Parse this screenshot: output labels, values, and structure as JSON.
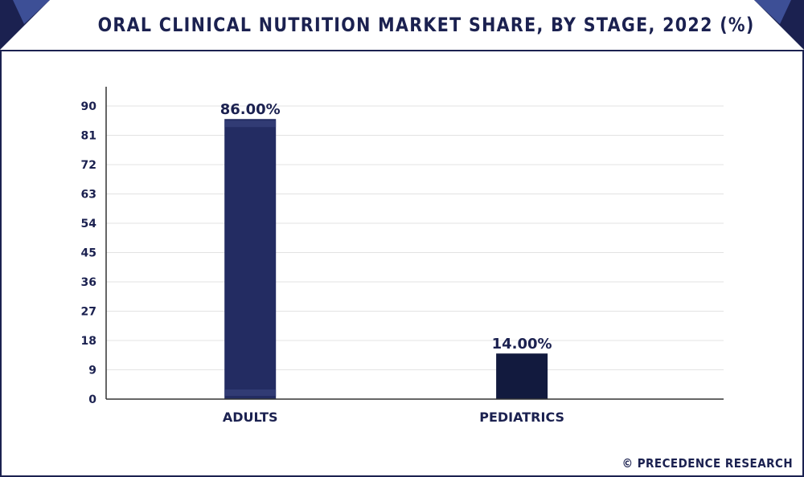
{
  "header": {
    "title": "ORAL CLINICAL NUTRITION MARKET SHARE, BY STAGE, 2022 (%)"
  },
  "watermark": "© PRECEDENCE RESEARCH",
  "colors": {
    "frame": "#1b2150",
    "bar_adults": "#232c62",
    "bar_pediatrics": "#121a3e",
    "grid": "#e3e3e3",
    "text": "#1b2150"
  },
  "chart_data": {
    "type": "bar",
    "title": "ORAL CLINICAL NUTRITION MARKET SHARE, BY STAGE, 2022 (%)",
    "categories": [
      "ADULTS",
      "PEDIATRICS"
    ],
    "values": [
      86.0,
      14.0
    ],
    "data_labels": [
      "86.00%",
      "14.00%"
    ],
    "ylim": [
      0,
      90
    ],
    "yticks": [
      0,
      9,
      18,
      27,
      36,
      45,
      54,
      63,
      72,
      81,
      90
    ],
    "grid": true,
    "legend": "none"
  }
}
